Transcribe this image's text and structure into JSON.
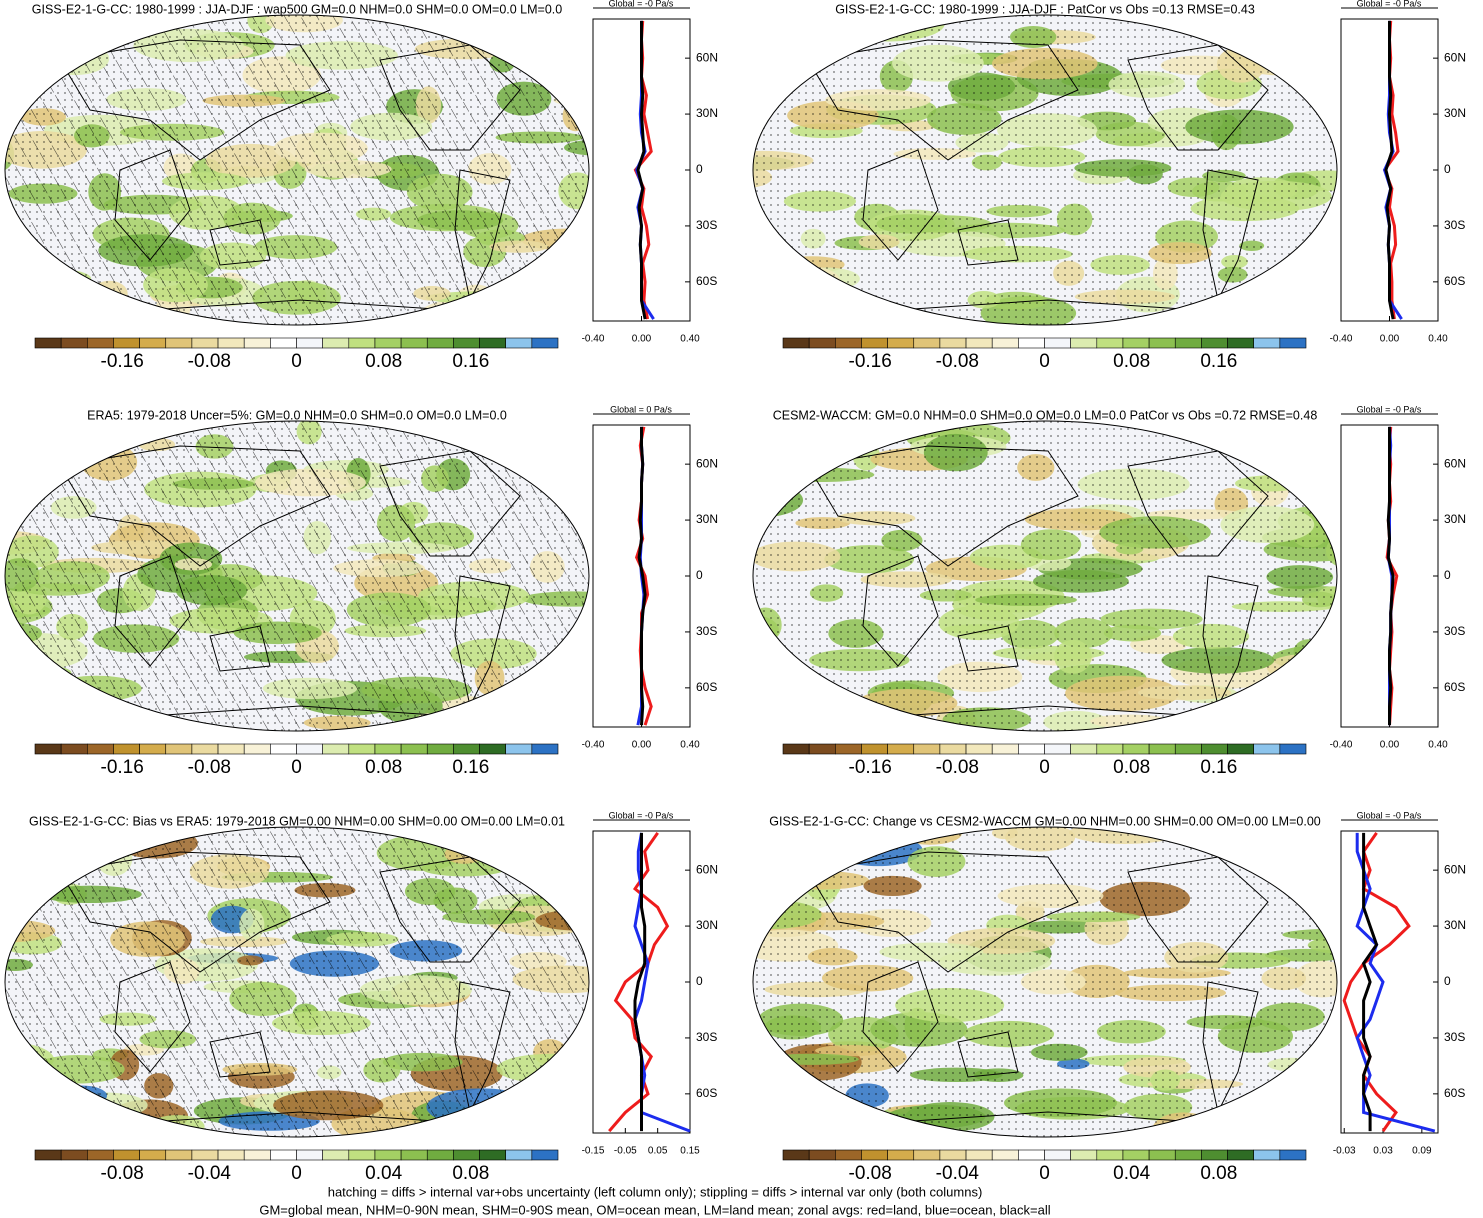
{
  "chart_data": [
    {
      "type": "map",
      "title": "GISS-E2-1-G-CC: 1980-1999 : JJA-DJF : wap500 GM=0.0 NHM=0.0 SHM=0.0 OM=0.0 LM=0.0",
      "hatching": true,
      "colorbar": {
        "colors": [
          "#5a3818",
          "#7c4c20",
          "#9c6628",
          "#c0922e",
          "#d4ac4c",
          "#e0c478",
          "#eadaa0",
          "#f2e8bc",
          "#f8f2d8",
          "#ffffff",
          "#f4f6fa",
          "#dcecb0",
          "#c0e080",
          "#a4d064",
          "#8cc050",
          "#70ac40",
          "#4e8e30",
          "#2e6c24",
          "#8cc4ec",
          "#2c72c4"
        ],
        "clim": [
          -0.24,
          0.24
        ],
        "ticks": [
          -0.16,
          -0.08,
          0,
          0.08,
          0.16
        ]
      },
      "zonal": {
        "title": "Global = -0 Pa/s",
        "xlim": [
          -0.4,
          0.4
        ],
        "xticks": [
          {
            "value": -0.4,
            "label": "-0.40"
          },
          {
            "value": 0,
            "label": "0.00"
          },
          {
            "value": 0.4,
            "label": "0.40"
          }
        ],
        "ylim": [
          -81,
          81
        ],
        "yticks": [
          {
            "value": 60,
            "label": "60N"
          },
          {
            "value": 30,
            "label": "30N"
          },
          0,
          {
            "value": -30,
            "label": "30S"
          },
          {
            "value": -60,
            "label": "60S"
          }
        ],
        "y": [
          -80,
          -70,
          -60,
          -50,
          -40,
          -30,
          -20,
          -10,
          0,
          10,
          20,
          30,
          40,
          50,
          60,
          70,
          80
        ],
        "series": [
          {
            "color": "#ee1c1c",
            "values": [
              0.05,
              0.02,
              0.03,
              0.01,
              0.06,
              0.04,
              0,
              0.02,
              -0.05,
              0.08,
              0.05,
              0.02,
              0.04,
              0,
              0.01,
              0,
              0.01
            ]
          },
          {
            "color": "#1c2cee",
            "values": [
              0.1,
              0,
              0,
              0,
              -0.01,
              0,
              -0.03,
              0.01,
              -0.04,
              0.03,
              0,
              -0.01,
              0,
              0,
              0,
              0,
              0
            ]
          },
          {
            "color": "#000000",
            "values": [
              0.03,
              0,
              0,
              0,
              -0.01,
              0,
              -0.02,
              0.01,
              -0.03,
              0.02,
              0.01,
              0,
              0.01,
              0,
              0,
              0,
              0
            ]
          }
        ]
      }
    },
    {
      "type": "map",
      "title": "GISS-E2-1-G-CC: 1980-1999 : JJA-DJF : PatCor vs Obs =0.13 RMSE=0.43",
      "hatching": false,
      "colorbar": {
        "colors": [
          "#5a3818",
          "#7c4c20",
          "#9c6628",
          "#c0922e",
          "#d4ac4c",
          "#e0c478",
          "#eadaa0",
          "#f2e8bc",
          "#f8f2d8",
          "#ffffff",
          "#f4f6fa",
          "#dcecb0",
          "#c0e080",
          "#a4d064",
          "#8cc050",
          "#70ac40",
          "#4e8e30",
          "#2e6c24",
          "#8cc4ec",
          "#2c72c4"
        ],
        "clim": [
          -0.24,
          0.24
        ],
        "ticks": [
          -0.16,
          -0.08,
          0,
          0.08,
          0.16
        ]
      },
      "zonal": {
        "title": "Global = -0 Pa/s",
        "xlim": [
          -0.4,
          0.4
        ],
        "xticks": [
          {
            "value": -0.4,
            "label": "-0.40"
          },
          {
            "value": 0,
            "label": "0.00"
          },
          {
            "value": 0.4,
            "label": "0.40"
          }
        ],
        "ylim": [
          -81,
          81
        ],
        "yticks": [
          {
            "value": 60,
            "label": "60N"
          },
          {
            "value": 30,
            "label": "30N"
          },
          0,
          {
            "value": -30,
            "label": "30S"
          },
          {
            "value": -60,
            "label": "60S"
          }
        ],
        "y": [
          -80,
          -70,
          -60,
          -50,
          -40,
          -30,
          -20,
          -10,
          0,
          10,
          20,
          30,
          40,
          50,
          60,
          70,
          80
        ],
        "series": [
          {
            "color": "#ee1c1c",
            "values": [
              0.04,
              0.02,
              0.02,
              0.01,
              0.05,
              0.04,
              0,
              0.02,
              -0.04,
              0.07,
              0.05,
              0.02,
              0.03,
              0,
              0.01,
              0,
              0.01
            ]
          },
          {
            "color": "#1c2cee",
            "values": [
              0.1,
              0,
              0,
              0,
              -0.01,
              0,
              -0.03,
              0.01,
              -0.04,
              0.03,
              0,
              -0.01,
              0,
              0,
              0,
              0,
              0
            ]
          },
          {
            "color": "#000000",
            "values": [
              0.03,
              0,
              0,
              0,
              -0.01,
              0,
              -0.02,
              0.01,
              -0.03,
              0.02,
              0.01,
              0,
              0.01,
              0,
              0,
              0,
              0
            ]
          }
        ]
      }
    },
    {
      "type": "map",
      "title": "ERA5: 1979-2018 Uncer=5%: GM=0.0 NHM=0.0 SHM=0.0 OM=0.0 LM=0.0",
      "hatching": true,
      "colorbar": {
        "colors": [
          "#5a3818",
          "#7c4c20",
          "#9c6628",
          "#c0922e",
          "#d4ac4c",
          "#e0c478",
          "#eadaa0",
          "#f2e8bc",
          "#f8f2d8",
          "#ffffff",
          "#f4f6fa",
          "#dcecb0",
          "#c0e080",
          "#a4d064",
          "#8cc050",
          "#70ac40",
          "#4e8e30",
          "#2e6c24",
          "#8cc4ec",
          "#2c72c4"
        ],
        "clim": [
          -0.24,
          0.24
        ],
        "ticks": [
          -0.16,
          -0.08,
          0,
          0.08,
          0.16
        ]
      },
      "zonal": {
        "title": "Global = 0 Pa/s",
        "xlim": [
          -0.4,
          0.4
        ],
        "xticks": [
          {
            "value": -0.4,
            "label": "-0.40"
          },
          {
            "value": 0,
            "label": "0.00"
          },
          {
            "value": 0.4,
            "label": "0.40"
          }
        ],
        "ylim": [
          -81,
          81
        ],
        "yticks": [
          {
            "value": 60,
            "label": "60N"
          },
          {
            "value": 30,
            "label": "30N"
          },
          0,
          {
            "value": -30,
            "label": "30S"
          },
          {
            "value": -60,
            "label": "60S"
          }
        ],
        "y": [
          -80,
          -70,
          -60,
          -50,
          -40,
          -30,
          -20,
          -10,
          0,
          10,
          20,
          30,
          40,
          50,
          60,
          70,
          80
        ],
        "series": [
          {
            "color": "#ee1c1c",
            "values": [
              0.03,
              0.08,
              0.03,
              0,
              -0.01,
              0,
              0,
              0.05,
              0.03,
              -0.04,
              0.01,
              -0.02,
              0,
              0,
              0.01,
              -0.01,
              0.02
            ]
          },
          {
            "color": "#1c2cee",
            "values": [
              -0.03,
              0,
              0,
              0,
              0,
              0,
              0.01,
              0.02,
              0,
              -0.01,
              0,
              0,
              0,
              0,
              0.01,
              0,
              0
            ]
          },
          {
            "color": "#000000",
            "values": [
              0,
              0.01,
              0,
              0,
              0,
              0,
              0.01,
              0.03,
              0.01,
              -0.02,
              0,
              -0.01,
              0,
              0,
              0.01,
              0,
              0
            ]
          }
        ]
      }
    },
    {
      "type": "map",
      "title": "CESM2-WACCM: GM=0.0 NHM=0.0 SHM=0.0 OM=0.0 LM=0.0 PatCor vs Obs =0.72 RMSE=0.48",
      "hatching": false,
      "colorbar": {
        "colors": [
          "#5a3818",
          "#7c4c20",
          "#9c6628",
          "#c0922e",
          "#d4ac4c",
          "#e0c478",
          "#eadaa0",
          "#f2e8bc",
          "#f8f2d8",
          "#ffffff",
          "#f4f6fa",
          "#dcecb0",
          "#c0e080",
          "#a4d064",
          "#8cc050",
          "#70ac40",
          "#4e8e30",
          "#2e6c24",
          "#8cc4ec",
          "#2c72c4"
        ],
        "clim": [
          -0.24,
          0.24
        ],
        "ticks": [
          -0.16,
          -0.08,
          0,
          0.08,
          0.16
        ]
      },
      "zonal": {
        "title": "Global = -0 Pa/s",
        "xlim": [
          -0.4,
          0.4
        ],
        "xticks": [
          {
            "value": -0.4,
            "label": "-0.40"
          },
          {
            "value": 0,
            "label": "0.00"
          },
          {
            "value": 0.4,
            "label": "0.40"
          }
        ],
        "ylim": [
          -81,
          81
        ],
        "yticks": [
          {
            "value": 60,
            "label": "60N"
          },
          {
            "value": 30,
            "label": "30N"
          },
          0,
          {
            "value": -30,
            "label": "30S"
          },
          {
            "value": -60,
            "label": "60S"
          }
        ],
        "y": [
          -80,
          -70,
          -60,
          -50,
          -40,
          -30,
          -20,
          -10,
          0,
          10,
          20,
          30,
          40,
          50,
          60,
          70,
          80
        ],
        "series": [
          {
            "color": "#ee1c1c",
            "values": [
              0,
              0.01,
              0.02,
              0,
              0.01,
              0.02,
              0.01,
              0.03,
              0.06,
              -0.02,
              0,
              -0.01,
              0.01,
              0,
              0.01,
              0,
              0.01
            ]
          },
          {
            "color": "#1c2cee",
            "values": [
              0,
              0,
              0,
              0,
              0,
              0.01,
              0.01,
              0.02,
              0.02,
              -0.01,
              0,
              0,
              0,
              0,
              0,
              0.01,
              0
            ]
          },
          {
            "color": "#000000",
            "values": [
              0,
              0,
              0.01,
              0,
              0,
              0.01,
              0.01,
              0.02,
              0.03,
              -0.01,
              0,
              -0.01,
              0,
              0,
              0,
              0,
              0
            ]
          }
        ]
      }
    },
    {
      "type": "map",
      "title": "GISS-E2-1-G-CC: Bias vs ERA5: 1979-2018 GM=0.00 NHM=0.00 SHM=0.00 OM=0.00 LM=0.01",
      "hatching": true,
      "colorbar": {
        "colors": [
          "#5a3818",
          "#7c4c20",
          "#9c6628",
          "#c0922e",
          "#d4ac4c",
          "#e0c478",
          "#eadaa0",
          "#f2e8bc",
          "#f8f2d8",
          "#ffffff",
          "#f4f6fa",
          "#dcecb0",
          "#c0e080",
          "#a4d064",
          "#8cc050",
          "#70ac40",
          "#4e8e30",
          "#2e6c24",
          "#8cc4ec",
          "#2c72c4"
        ],
        "clim": [
          -0.12,
          0.12
        ],
        "ticks": [
          -0.08,
          -0.04,
          0,
          0.04,
          0.08
        ]
      },
      "zonal": {
        "title": "Global = -0 Pa/s",
        "xlim": [
          -0.15,
          0.15
        ],
        "xticks": [
          -0.15,
          -0.05,
          0.05,
          0.15
        ],
        "ylim": [
          -81,
          81
        ],
        "yticks": [
          {
            "value": 60,
            "label": "60N"
          },
          {
            "value": 30,
            "label": "30N"
          },
          0,
          {
            "value": -30,
            "label": "30S"
          },
          {
            "value": -60,
            "label": "60S"
          }
        ],
        "y": [
          -80,
          -70,
          -60,
          -50,
          -40,
          -30,
          -20,
          -10,
          0,
          10,
          20,
          30,
          40,
          50,
          60,
          70,
          80
        ],
        "series": [
          {
            "color": "#ee1c1c",
            "values": [
              -0.1,
              -0.05,
              0.02,
              0,
              0.03,
              -0.02,
              -0.03,
              -0.08,
              -0.05,
              0.02,
              0.04,
              0.08,
              0.05,
              -0.02,
              0.02,
              0.01,
              0.05
            ]
          },
          {
            "color": "#1c2cee",
            "values": [
              0.15,
              0,
              0,
              0.01,
              0,
              -0.01,
              -0.02,
              0,
              0.01,
              0.02,
              0,
              -0.02,
              -0.01,
              0,
              -0.01,
              -0.01,
              0
            ]
          },
          {
            "color": "#000000",
            "values": [
              0,
              0,
              0,
              0,
              0,
              -0.01,
              -0.02,
              -0.02,
              -0.01,
              0.01,
              0.01,
              0.01,
              0,
              0,
              0,
              0,
              0
            ]
          }
        ]
      }
    },
    {
      "type": "map",
      "title": "GISS-E2-1-G-CC: Change vs CESM2-WACCM GM=0.00 NHM=0.00 SHM=0.00 OM=0.00 LM=0.00",
      "hatching": false,
      "colorbar": {
        "colors": [
          "#5a3818",
          "#7c4c20",
          "#9c6628",
          "#c0922e",
          "#d4ac4c",
          "#e0c478",
          "#eadaa0",
          "#f2e8bc",
          "#f8f2d8",
          "#ffffff",
          "#f4f6fa",
          "#dcecb0",
          "#c0e080",
          "#a4d064",
          "#8cc050",
          "#70ac40",
          "#4e8e30",
          "#2e6c24",
          "#8cc4ec",
          "#2c72c4"
        ],
        "clim": [
          -0.12,
          0.12
        ],
        "ticks": [
          -0.08,
          -0.04,
          0,
          0.04,
          0.08
        ]
      },
      "zonal": {
        "title": "Global = -0 Pa/s",
        "xlim": [
          -0.035,
          0.115
        ],
        "xticks": [
          -0.03,
          0.03,
          0.09
        ],
        "ylim": [
          -81,
          81
        ],
        "yticks": [
          {
            "value": 60,
            "label": "60N"
          },
          {
            "value": 30,
            "label": "30N"
          },
          0,
          {
            "value": -30,
            "label": "30S"
          },
          {
            "value": -60,
            "label": "60S"
          }
        ],
        "y": [
          -80,
          -70,
          -60,
          -50,
          -40,
          -30,
          -20,
          -10,
          0,
          10,
          20,
          30,
          40,
          50,
          60,
          70,
          80
        ],
        "series": [
          {
            "color": "#ee1c1c",
            "values": [
              0.03,
              0.05,
              0.02,
              0,
              0.01,
              -0.01,
              -0.02,
              -0.03,
              -0.02,
              0,
              0.04,
              0.07,
              0.05,
              0,
              0.01,
              0,
              0.02
            ]
          },
          {
            "color": "#1c2cee",
            "values": [
              0.11,
              0,
              0,
              0.01,
              0,
              -0.01,
              0.01,
              0.02,
              0.03,
              0.01,
              0.02,
              -0.01,
              0,
              0.01,
              0,
              -0.01,
              -0.01
            ]
          },
          {
            "color": "#000000",
            "values": [
              0.01,
              0.01,
              0,
              0,
              0.01,
              0,
              0,
              0,
              0.01,
              0,
              0.02,
              0.01,
              0,
              0,
              0,
              0,
              0
            ]
          }
        ]
      }
    }
  ],
  "footer": [
    "hatching = diffs > internal var+obs uncertainty (left column only); stippling = diffs > internal var only (both columns)",
    "GM=global mean, NHM=0-90N mean, SHM=0-90S mean, OM=ocean mean, LM=land mean; zonal avgs: red=land, blue=ocean, black=all"
  ]
}
